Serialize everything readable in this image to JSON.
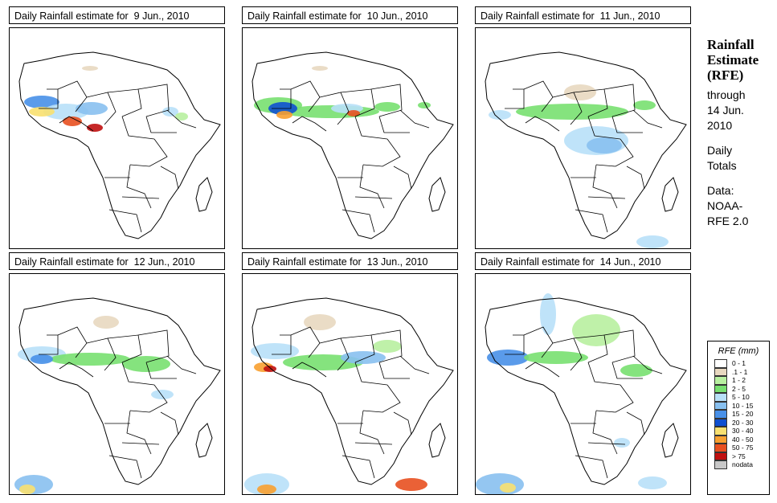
{
  "panels": [
    {
      "title": "Daily Rainfall estimate for  9 Jun., 2010"
    },
    {
      "title": "Daily Rainfall estimate for  10 Jun., 2010"
    },
    {
      "title": "Daily Rainfall estimate for  11 Jun., 2010"
    },
    {
      "title": "Daily Rainfall estimate for  12 Jun., 2010"
    },
    {
      "title": "Daily Rainfall estimate for  13 Jun., 2010"
    },
    {
      "title": "Daily Rainfall estimate for  14 Jun., 2010"
    }
  ],
  "side": {
    "heading_line1": "Rainfall",
    "heading_line2": "Estimate",
    "heading_line3": "(RFE)",
    "through": "through",
    "date_line1": "14 Jun.",
    "date_line2": "2010",
    "daily": "Daily",
    "totals": "Totals",
    "data_label": "Data:",
    "source_line1": "NOAA-",
    "source_line2": "RFE 2.0"
  },
  "legend": {
    "title": "RFE (mm)",
    "items": [
      {
        "label": "0 - 1",
        "color": "#ffffff"
      },
      {
        "label": ".1 - 1",
        "color": "#e8d8c0"
      },
      {
        "label": "1 - 2",
        "color": "#b8f0a0"
      },
      {
        "label": "2 - 5",
        "color": "#78e070"
      },
      {
        "label": "5 - 10",
        "color": "#b8e0f8"
      },
      {
        "label": "10 - 15",
        "color": "#88c0f0"
      },
      {
        "label": "15 - 20",
        "color": "#4890e8"
      },
      {
        "label": "20 - 30",
        "color": "#1050d0"
      },
      {
        "label": "30 - 40",
        "color": "#f8e070"
      },
      {
        "label": "40 - 50",
        "color": "#f8a030"
      },
      {
        "label": "50 - 75",
        "color": "#e85020"
      },
      {
        "label": "> 75",
        "color": "#c01010"
      },
      {
        "label": "nodata",
        "color": "#c8c8c8"
      }
    ]
  }
}
